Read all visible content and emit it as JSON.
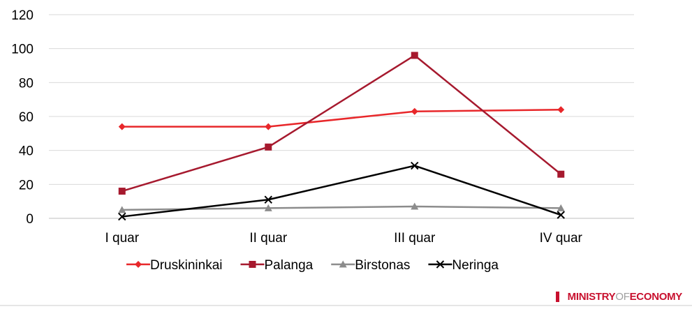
{
  "chart_data": {
    "type": "line",
    "categories": [
      "I quar",
      "II quar",
      "III quar",
      "IV quar"
    ],
    "ylim": [
      0,
      120
    ],
    "yticks": [
      0,
      20,
      40,
      60,
      80,
      100,
      120
    ],
    "grid": true,
    "legend_position": "bottom",
    "series": [
      {
        "name": "Druskininkai",
        "values": [
          54,
          54,
          63,
          64
        ],
        "color": "#e8272a",
        "marker": "diamond"
      },
      {
        "name": "Palanga",
        "values": [
          16,
          42,
          96,
          26
        ],
        "color": "#a6192e",
        "marker": "square"
      },
      {
        "name": "Birstonas",
        "values": [
          5,
          6,
          7,
          6
        ],
        "color": "#8c8c8c",
        "marker": "triangle"
      },
      {
        "name": "Neringa",
        "values": [
          1,
          11,
          31,
          2
        ],
        "color": "#000000",
        "marker": "x"
      }
    ]
  },
  "branding": {
    "part1": "MINISTRY",
    "part2": "OF",
    "part3": "ECONOMY",
    "accent_color": "#c8102e",
    "secondary_color": "#a0a0a0"
  }
}
